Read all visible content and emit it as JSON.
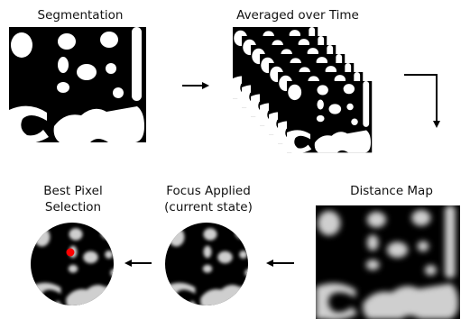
{
  "stages": {
    "segmentation": {
      "label": "Segmentation"
    },
    "averaged": {
      "label": "Averaged over Time"
    },
    "distance_map": {
      "label": "Distance Map"
    },
    "focus": {
      "label_line1": "Focus Applied",
      "label_line2": "(current state)"
    },
    "best_pixel": {
      "label_line1": "Best Pixel",
      "label_line2": "Selection"
    }
  },
  "colors": {
    "background": "#ffffff",
    "panel": "#000000",
    "blob": "#ffffff",
    "distance_glow": "#d9d9d9",
    "marker": "#ff0000",
    "arrow": "#000000"
  }
}
